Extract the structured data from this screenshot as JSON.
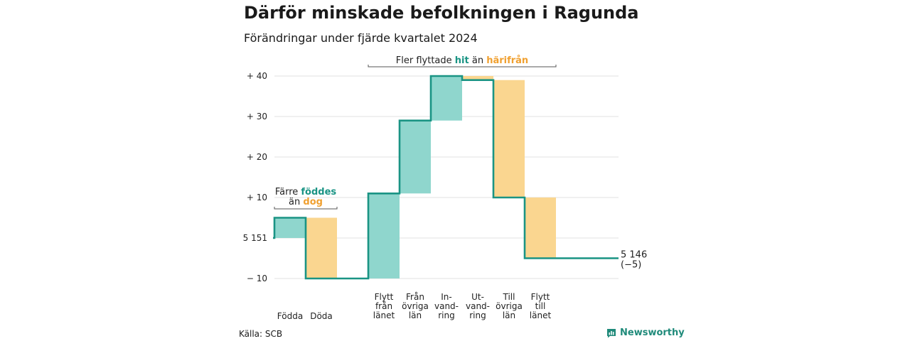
{
  "title": "Därför minskade befolkningen i Ragunda",
  "subtitle": "Förändringar under fjärde kvartalet 2024",
  "source": "Källa: SCB",
  "brand": "Newsworthy",
  "colors": {
    "increase": "#8fd6cd",
    "decrease": "#fad690",
    "line": "#1a9484",
    "teal_text": "#1a9484",
    "orange_text": "#f0a030",
    "grid": "#e2e2e2",
    "axis_text": "#222222"
  },
  "chart_data": {
    "type": "waterfall",
    "start_value": 5151,
    "end_value": 5146,
    "end_label": [
      "5 146",
      "(−5)"
    ],
    "ylim": [
      -10,
      40
    ],
    "yticks": [
      {
        "value": -10,
        "label": "− 10"
      },
      {
        "value": 0,
        "label": "5 151"
      },
      {
        "value": 10,
        "label": "+ 10"
      },
      {
        "value": 20,
        "label": "+ 20"
      },
      {
        "value": 30,
        "label": "+ 30"
      },
      {
        "value": 40,
        "label": "+ 40"
      }
    ],
    "steps": [
      {
        "label": [
          "Födda"
        ],
        "change": 5,
        "kind": "increase"
      },
      {
        "label": [
          "Döda"
        ],
        "change": -15,
        "kind": "decrease"
      },
      {
        "label": [
          ""
        ],
        "change": 0,
        "kind": "spacer"
      },
      {
        "label": [
          "Flytt",
          "från",
          "länet"
        ],
        "change": 21,
        "kind": "increase"
      },
      {
        "label": [
          "Från",
          "övriga",
          "län"
        ],
        "change": 18,
        "kind": "increase"
      },
      {
        "label": [
          "In-",
          "vand-",
          "ring"
        ],
        "change": 11,
        "kind": "increase"
      },
      {
        "label": [
          "Ut-",
          "vand-",
          "ring"
        ],
        "change": -1,
        "kind": "decrease"
      },
      {
        "label": [
          "Till",
          "övriga",
          "län"
        ],
        "change": -29,
        "kind": "decrease"
      },
      {
        "label": [
          "Flytt",
          "till",
          "länet"
        ],
        "change": -15,
        "kind": "decrease"
      }
    ],
    "annotations": [
      {
        "lines": [
          [
            "Färre ",
            "föddes"
          ],
          [
            "än ",
            "dog"
          ]
        ],
        "span": [
          0,
          1
        ]
      },
      {
        "lines": [
          [
            "Fler flyttade ",
            "hit",
            "  än ",
            "härifrån"
          ]
        ],
        "span": [
          3,
          8
        ]
      }
    ]
  }
}
